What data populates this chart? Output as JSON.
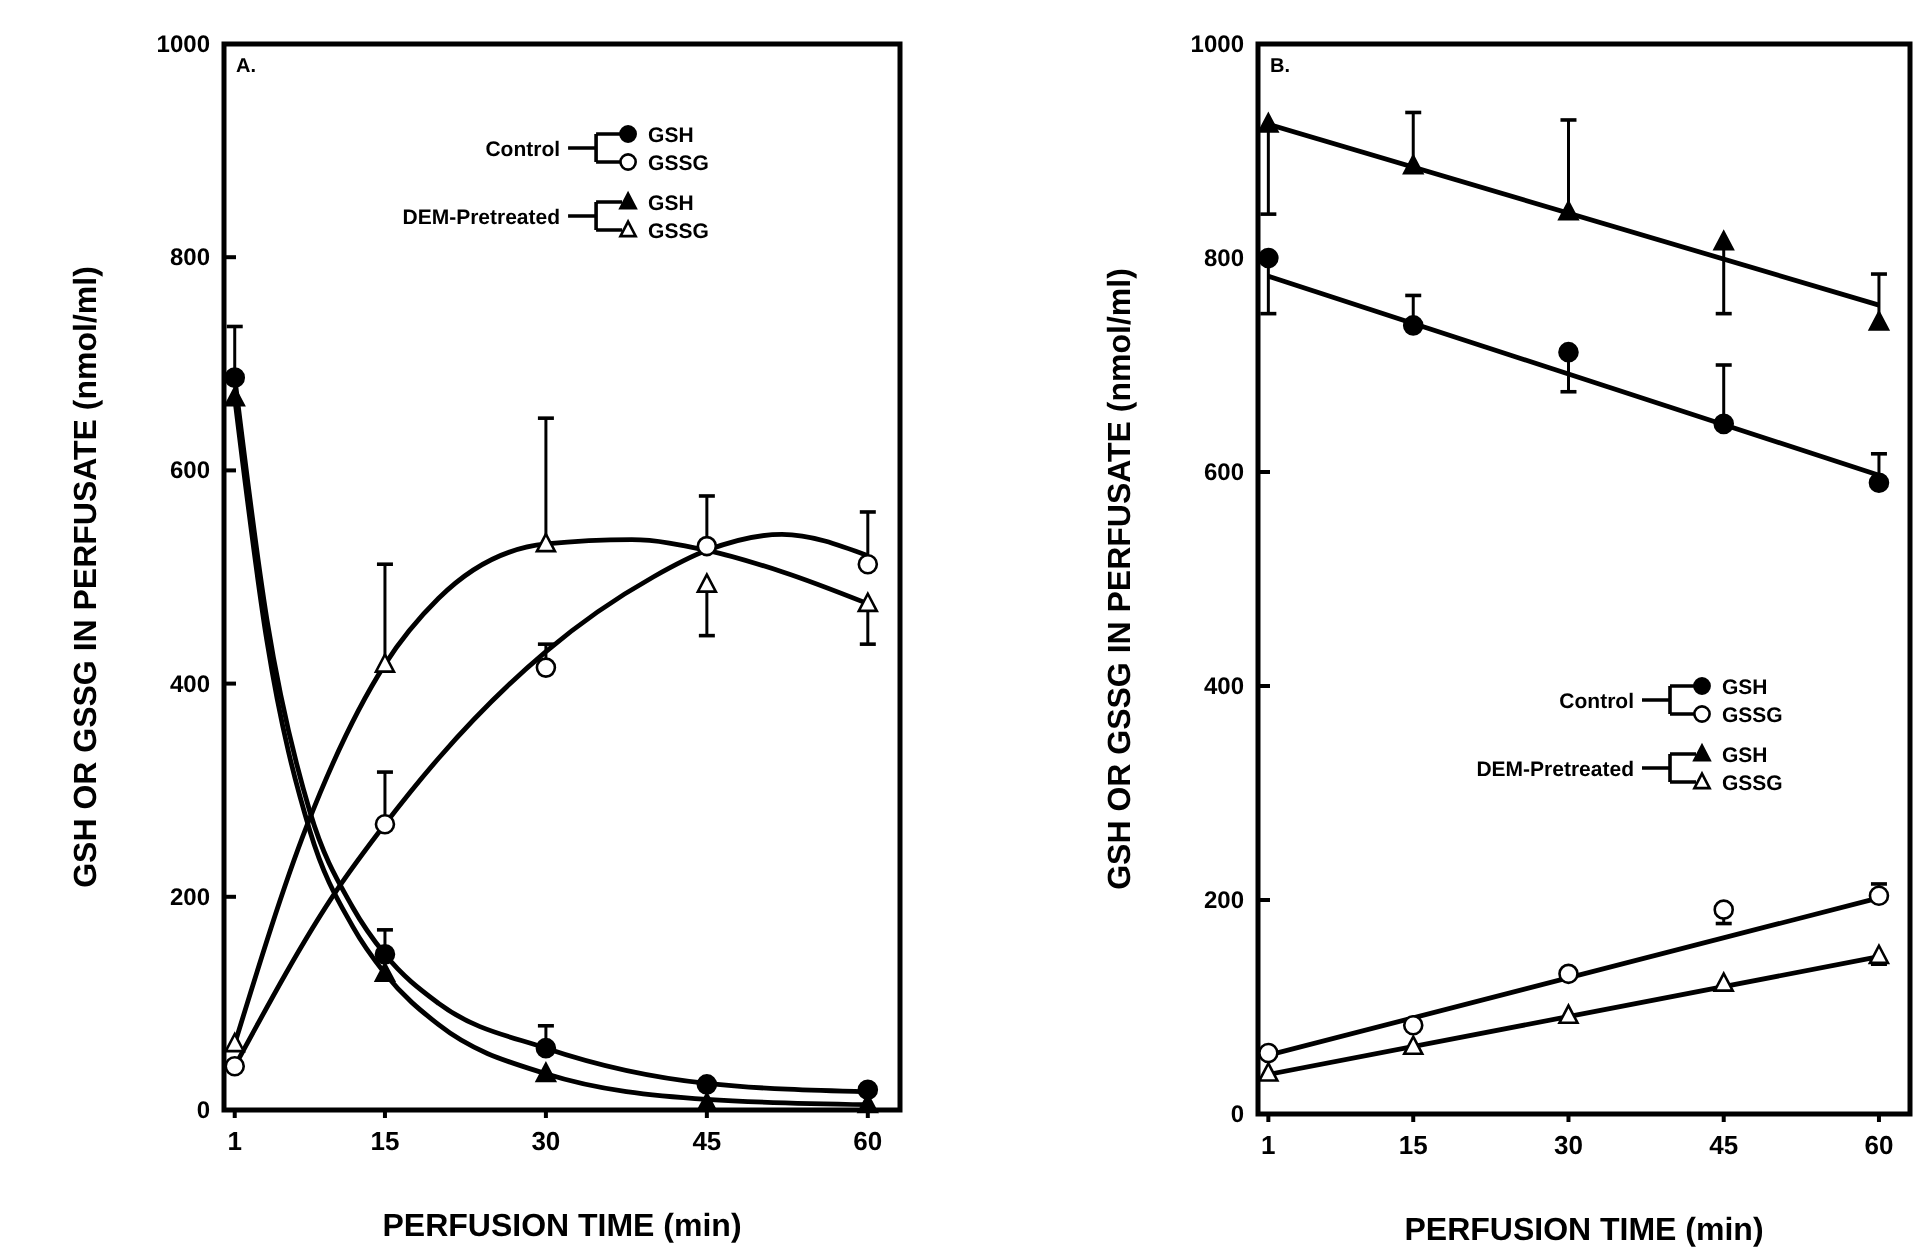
{
  "chart_data": [
    {
      "type": "scatter",
      "title": "A.",
      "xlabel": "PERFUSION TIME (min)",
      "ylabel": "GSH OR GSSG IN PERFUSATE (nmol/ml)",
      "xlim": [
        0,
        63
      ],
      "ylim": [
        0,
        1000
      ],
      "xticks": [
        1,
        15,
        30,
        45,
        60
      ],
      "yticks": [
        0,
        200,
        400,
        600,
        800,
        1000
      ],
      "grid": false,
      "legend": "top",
      "annotations": [
        "Control",
        "DEM-Pretreated"
      ],
      "series": [
        {
          "name": "GSH",
          "marker": "circle",
          "color": "#000000",
          "x": [
            1,
            15,
            30,
            45,
            60
          ],
          "values": [
            687,
            146,
            58,
            24,
            19
          ],
          "errors": [
            [
              687,
              735
            ],
            [
              146,
              169
            ],
            [
              58,
              79
            ],
            null,
            null
          ]
        },
        {
          "name": "GSSG",
          "marker": "circle",
          "color": "#ffffff",
          "x": [
            1,
            15,
            30,
            45,
            60
          ],
          "values": [
            41,
            268,
            415,
            529,
            512
          ],
          "errors": [
            null,
            [
              268,
              317
            ],
            [
              415,
              437
            ],
            [
              529,
              576
            ],
            [
              512,
              561
            ]
          ]
        },
        {
          "name": "GSH",
          "marker": "triangle",
          "color": "#000000",
          "x": [
            1,
            15,
            30,
            45,
            60
          ],
          "values": [
            668,
            128,
            34,
            6,
            5
          ],
          "errors": [
            null,
            null,
            null,
            null,
            null
          ]
        },
        {
          "name": "GSSG",
          "marker": "triangle",
          "color": "#ffffff",
          "x": [
            1,
            15,
            30,
            45,
            60
          ],
          "values": [
            62,
            418,
            531,
            493,
            475
          ],
          "errors": [
            null,
            [
              418,
              512
            ],
            [
              531,
              649
            ],
            [
              445,
              493
            ],
            [
              437,
              475
            ]
          ]
        },
        {
          "type": "line",
          "marker": "none",
          "color": "#000000",
          "x": [
            1,
            4,
            8,
            12,
            15,
            20,
            30,
            45,
            60
          ],
          "values": [
            687,
            460,
            280,
            190,
            146,
            100,
            58,
            25,
            17
          ]
        },
        {
          "type": "line",
          "marker": "none",
          "color": "#000000",
          "x": [
            1,
            4,
            8,
            12,
            15,
            20,
            30,
            45,
            60
          ],
          "values": [
            668,
            440,
            262,
            172,
            128,
            80,
            34,
            10,
            5
          ]
        },
        {
          "type": "line",
          "marker": "none",
          "color": "#000000",
          "x": [
            1,
            10.5,
            15,
            20,
            30,
            40,
            45,
            52,
            60
          ],
          "values": [
            41,
            206,
            268,
            330,
            430,
            500,
            525,
            540,
            520
          ]
        },
        {
          "type": "line",
          "marker": "none",
          "color": "#000000",
          "x": [
            1,
            7.7,
            15,
            20,
            30,
            38,
            45,
            52,
            60
          ],
          "values": [
            62,
            266,
            418,
            480,
            531,
            535,
            525,
            505,
            475
          ]
        }
      ]
    },
    {
      "type": "scatter",
      "title": "B.",
      "xlabel": "PERFUSION TIME (min)",
      "ylabel": "GSH OR GSSG IN PERFUSATE (nmol/ml)",
      "xlim": [
        0,
        63
      ],
      "ylim": [
        0,
        1000
      ],
      "xticks": [
        1,
        15,
        30,
        45,
        60
      ],
      "yticks": [
        0,
        200,
        400,
        600,
        800,
        1000
      ],
      "grid": false,
      "legend": "right",
      "annotations": [
        "Control",
        "DEM-Pretreated"
      ],
      "series": [
        {
          "name": "GSH",
          "marker": "circle",
          "color": "#000000",
          "x": [
            1,
            15,
            30,
            45,
            60
          ],
          "values": [
            800,
            737,
            712,
            645,
            590
          ],
          "errors": [
            [
              748,
              800
            ],
            [
              737,
              765
            ],
            [
              675,
              712
            ],
            [
              645,
              700
            ],
            [
              590,
              617
            ]
          ]
        },
        {
          "name": "GSSG",
          "marker": "circle",
          "color": "#ffffff",
          "x": [
            1,
            15,
            30,
            45,
            60
          ],
          "values": [
            57,
            83,
            131,
            191,
            204
          ],
          "errors": [
            null,
            null,
            null,
            [
              178,
              191
            ],
            [
              204,
              215
            ]
          ]
        },
        {
          "name": "GSH",
          "marker": "triangle",
          "color": "#000000",
          "x": [
            1,
            15,
            30,
            45,
            60
          ],
          "values": [
            925,
            886,
            843,
            815,
            740
          ],
          "errors": [
            [
              841,
              925
            ],
            [
              886,
              936
            ],
            [
              843,
              929
            ],
            [
              748,
              815
            ],
            [
              740,
              785
            ]
          ]
        },
        {
          "name": "GSSG",
          "marker": "triangle",
          "color": "#ffffff",
          "x": [
            1,
            15,
            30,
            45,
            60
          ],
          "values": [
            38,
            63,
            92,
            122,
            148
          ],
          "errors": [
            null,
            null,
            null,
            null,
            [
              140,
              148
            ]
          ]
        },
        {
          "type": "line",
          "marker": "none",
          "color": "#000000",
          "x": [
            1,
            60
          ],
          "values": [
            783,
            597
          ]
        },
        {
          "type": "line",
          "marker": "none",
          "color": "#000000",
          "x": [
            1,
            60
          ],
          "values": [
            925,
            756
          ]
        },
        {
          "type": "line",
          "marker": "none",
          "color": "#000000",
          "x": [
            1,
            60
          ],
          "values": [
            55,
            202
          ]
        },
        {
          "type": "line",
          "marker": "none",
          "color": "#000000",
          "x": [
            1,
            60
          ],
          "values": [
            37,
            147
          ]
        }
      ]
    }
  ]
}
